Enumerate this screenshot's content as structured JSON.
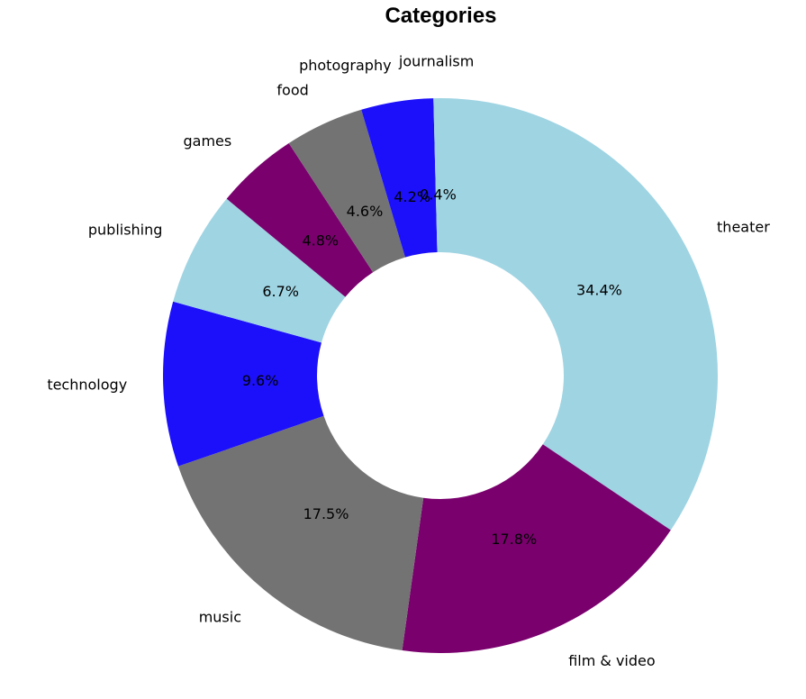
{
  "chart_data": {
    "type": "pie",
    "title": "Categories",
    "donut": true,
    "start_angle_deg": 90,
    "direction": "clockwise",
    "slices": [
      {
        "label": "theater",
        "value": 34.4,
        "pct_text": "34.4%",
        "color": "#9fd4e3"
      },
      {
        "label": "film & video",
        "value": 17.8,
        "pct_text": "17.8%",
        "color": "#7a006e"
      },
      {
        "label": "music",
        "value": 17.5,
        "pct_text": "17.5%",
        "color": "#737373"
      },
      {
        "label": "technology",
        "value": 9.6,
        "pct_text": "9.6%",
        "color": "#1c10fa"
      },
      {
        "label": "publishing",
        "value": 6.7,
        "pct_text": "6.7%",
        "color": "#9fd4e3"
      },
      {
        "label": "games",
        "value": 4.8,
        "pct_text": "4.8%",
        "color": "#7a006e"
      },
      {
        "label": "food",
        "value": 4.6,
        "pct_text": "4.6%",
        "color": "#737373"
      },
      {
        "label": "photography",
        "value": 4.2,
        "pct_text": "4.2%",
        "color": "#1c10fa"
      },
      {
        "label": "journalism",
        "value": 0.4,
        "pct_text": "0.4%",
        "color": "#9fd4e3"
      }
    ]
  }
}
